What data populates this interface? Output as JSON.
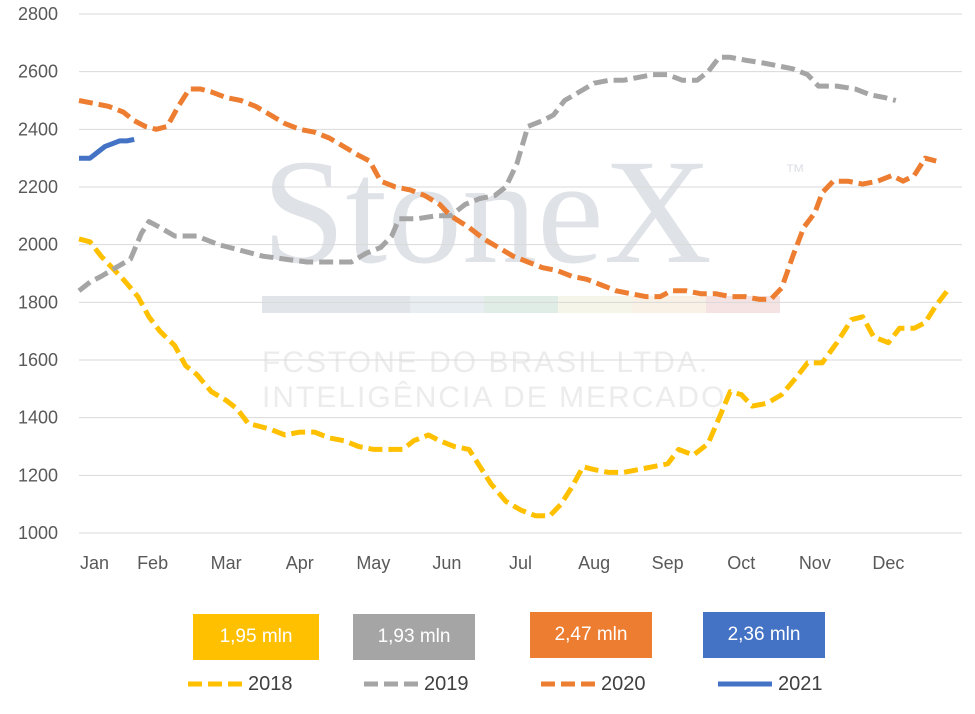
{
  "watermark": {
    "brand": "StoneX",
    "tm": "™",
    "line1": "FCSTONE DO BRASIL LTDA.",
    "line2": "INTELIGÊNCIA DE MERCADO"
  },
  "summary_boxes": [
    {
      "label": "1,95 mln",
      "color": "#FFC000"
    },
    {
      "label": "1,93 mln",
      "color": "#A5A5A5"
    },
    {
      "label": "2,47 mln",
      "color": "#ED7D31"
    },
    {
      "label": "2,36 mln",
      "color": "#4472C4"
    }
  ],
  "chart_data": {
    "type": "line",
    "title": "",
    "xlabel": "",
    "ylabel": "",
    "ylim": [
      1000,
      2800
    ],
    "yticks": [
      1000,
      1200,
      1400,
      1600,
      1800,
      2000,
      2200,
      2400,
      2600,
      2800
    ],
    "xlim": [
      0,
      12
    ],
    "xticks": [
      "Jan",
      "Feb",
      "Mar",
      "Apr",
      "May",
      "Jun",
      "Jul",
      "Aug",
      "Sep",
      "Oct",
      "Nov",
      "Dec"
    ],
    "grid": true,
    "legend_position": "bottom",
    "series": [
      {
        "name": "2018",
        "color": "#FFC000",
        "style": "dashed",
        "points": [
          [
            0,
            2020
          ],
          [
            0.15,
            2010
          ],
          [
            0.3,
            1960
          ],
          [
            0.45,
            1920
          ],
          [
            0.6,
            1880
          ],
          [
            0.8,
            1820
          ],
          [
            0.95,
            1750
          ],
          [
            1.1,
            1700
          ],
          [
            1.3,
            1650
          ],
          [
            1.45,
            1580
          ],
          [
            1.6,
            1550
          ],
          [
            1.8,
            1490
          ],
          [
            2,
            1460
          ],
          [
            2.15,
            1430
          ],
          [
            2.3,
            1380
          ],
          [
            2.45,
            1370
          ],
          [
            2.6,
            1360
          ],
          [
            2.8,
            1340
          ],
          [
            3,
            1350
          ],
          [
            3.2,
            1350
          ],
          [
            3.4,
            1330
          ],
          [
            3.6,
            1320
          ],
          [
            3.8,
            1300
          ],
          [
            4,
            1290
          ],
          [
            4.2,
            1290
          ],
          [
            4.4,
            1290
          ],
          [
            4.55,
            1320
          ],
          [
            4.75,
            1340
          ],
          [
            4.9,
            1320
          ],
          [
            5.1,
            1300
          ],
          [
            5.3,
            1290
          ],
          [
            5.45,
            1230
          ],
          [
            5.6,
            1170
          ],
          [
            5.8,
            1110
          ],
          [
            6,
            1080
          ],
          [
            6.2,
            1060
          ],
          [
            6.4,
            1060
          ],
          [
            6.55,
            1100
          ],
          [
            6.7,
            1160
          ],
          [
            6.85,
            1230
          ],
          [
            7,
            1220
          ],
          [
            7.2,
            1210
          ],
          [
            7.4,
            1210
          ],
          [
            7.6,
            1220
          ],
          [
            7.8,
            1230
          ],
          [
            8,
            1240
          ],
          [
            8.15,
            1290
          ],
          [
            8.35,
            1270
          ],
          [
            8.55,
            1310
          ],
          [
            8.7,
            1400
          ],
          [
            8.85,
            1490
          ],
          [
            9,
            1480
          ],
          [
            9.15,
            1440
          ],
          [
            9.35,
            1450
          ],
          [
            9.55,
            1480
          ],
          [
            9.75,
            1540
          ],
          [
            9.9,
            1590
          ],
          [
            10.1,
            1590
          ],
          [
            10.3,
            1660
          ],
          [
            10.5,
            1740
          ],
          [
            10.65,
            1750
          ],
          [
            10.8,
            1680
          ],
          [
            11,
            1660
          ],
          [
            11.15,
            1710
          ],
          [
            11.35,
            1710
          ],
          [
            11.5,
            1730
          ],
          [
            11.65,
            1790
          ],
          [
            11.8,
            1840
          ]
        ]
      },
      {
        "name": "2019",
        "color": "#A5A5A5",
        "style": "dashed",
        "points": [
          [
            0,
            1840
          ],
          [
            0.15,
            1870
          ],
          [
            0.3,
            1890
          ],
          [
            0.5,
            1920
          ],
          [
            0.7,
            1950
          ],
          [
            0.85,
            2040
          ],
          [
            0.95,
            2080
          ],
          [
            1.1,
            2060
          ],
          [
            1.3,
            2030
          ],
          [
            1.6,
            2030
          ],
          [
            1.9,
            2000
          ],
          [
            2.2,
            1980
          ],
          [
            2.5,
            1960
          ],
          [
            2.8,
            1950
          ],
          [
            3.1,
            1940
          ],
          [
            3.4,
            1940
          ],
          [
            3.7,
            1940
          ],
          [
            3.9,
            1970
          ],
          [
            4.1,
            1990
          ],
          [
            4.25,
            2030
          ],
          [
            4.35,
            2090
          ],
          [
            4.6,
            2090
          ],
          [
            4.85,
            2100
          ],
          [
            5.05,
            2100
          ],
          [
            5.25,
            2140
          ],
          [
            5.45,
            2160
          ],
          [
            5.65,
            2170
          ],
          [
            5.8,
            2200
          ],
          [
            5.95,
            2280
          ],
          [
            6.1,
            2410
          ],
          [
            6.3,
            2430
          ],
          [
            6.45,
            2450
          ],
          [
            6.6,
            2500
          ],
          [
            6.8,
            2530
          ],
          [
            7,
            2560
          ],
          [
            7.2,
            2570
          ],
          [
            7.4,
            2570
          ],
          [
            7.6,
            2580
          ],
          [
            7.8,
            2590
          ],
          [
            8,
            2590
          ],
          [
            8.2,
            2570
          ],
          [
            8.4,
            2570
          ],
          [
            8.55,
            2600
          ],
          [
            8.7,
            2650
          ],
          [
            8.85,
            2650
          ],
          [
            9.05,
            2640
          ],
          [
            9.3,
            2630
          ],
          [
            9.5,
            2620
          ],
          [
            9.7,
            2610
          ],
          [
            9.9,
            2590
          ],
          [
            10.05,
            2550
          ],
          [
            10.3,
            2550
          ],
          [
            10.55,
            2540
          ],
          [
            10.75,
            2520
          ],
          [
            10.95,
            2510
          ],
          [
            11.1,
            2500
          ]
        ]
      },
      {
        "name": "2020",
        "color": "#ED7D31",
        "style": "dashed",
        "points": [
          [
            0,
            2500
          ],
          [
            0.2,
            2490
          ],
          [
            0.4,
            2480
          ],
          [
            0.6,
            2460
          ],
          [
            0.75,
            2430
          ],
          [
            0.9,
            2410
          ],
          [
            1.05,
            2400
          ],
          [
            1.2,
            2410
          ],
          [
            1.35,
            2480
          ],
          [
            1.5,
            2540
          ],
          [
            1.65,
            2540
          ],
          [
            1.8,
            2530
          ],
          [
            2,
            2510
          ],
          [
            2.2,
            2500
          ],
          [
            2.4,
            2480
          ],
          [
            2.6,
            2450
          ],
          [
            2.8,
            2420
          ],
          [
            3,
            2400
          ],
          [
            3.2,
            2390
          ],
          [
            3.4,
            2370
          ],
          [
            3.6,
            2340
          ],
          [
            3.8,
            2310
          ],
          [
            3.95,
            2290
          ],
          [
            4.1,
            2220
          ],
          [
            4.3,
            2200
          ],
          [
            4.5,
            2190
          ],
          [
            4.7,
            2170
          ],
          [
            4.9,
            2140
          ],
          [
            5.05,
            2100
          ],
          [
            5.3,
            2060
          ],
          [
            5.5,
            2020
          ],
          [
            5.7,
            1990
          ],
          [
            5.9,
            1960
          ],
          [
            6.1,
            1940
          ],
          [
            6.3,
            1920
          ],
          [
            6.5,
            1910
          ],
          [
            6.7,
            1890
          ],
          [
            6.9,
            1880
          ],
          [
            7.1,
            1860
          ],
          [
            7.3,
            1840
          ],
          [
            7.5,
            1830
          ],
          [
            7.7,
            1820
          ],
          [
            7.9,
            1820
          ],
          [
            8.05,
            1840
          ],
          [
            8.25,
            1840
          ],
          [
            8.45,
            1830
          ],
          [
            8.65,
            1830
          ],
          [
            8.85,
            1820
          ],
          [
            9.05,
            1820
          ],
          [
            9.25,
            1810
          ],
          [
            9.4,
            1810
          ],
          [
            9.55,
            1850
          ],
          [
            9.7,
            1960
          ],
          [
            9.85,
            2060
          ],
          [
            10,
            2110
          ],
          [
            10.1,
            2180
          ],
          [
            10.25,
            2220
          ],
          [
            10.45,
            2220
          ],
          [
            10.65,
            2210
          ],
          [
            10.85,
            2220
          ],
          [
            11.05,
            2240
          ],
          [
            11.2,
            2220
          ],
          [
            11.35,
            2240
          ],
          [
            11.5,
            2300
          ],
          [
            11.65,
            2290
          ]
        ]
      },
      {
        "name": "2021",
        "color": "#4472C4",
        "style": "solid",
        "points": [
          [
            0,
            2300
          ],
          [
            0.15,
            2300
          ],
          [
            0.25,
            2320
          ],
          [
            0.35,
            2340
          ],
          [
            0.45,
            2350
          ],
          [
            0.55,
            2360
          ],
          [
            0.65,
            2360
          ],
          [
            0.75,
            2365
          ]
        ]
      }
    ]
  }
}
